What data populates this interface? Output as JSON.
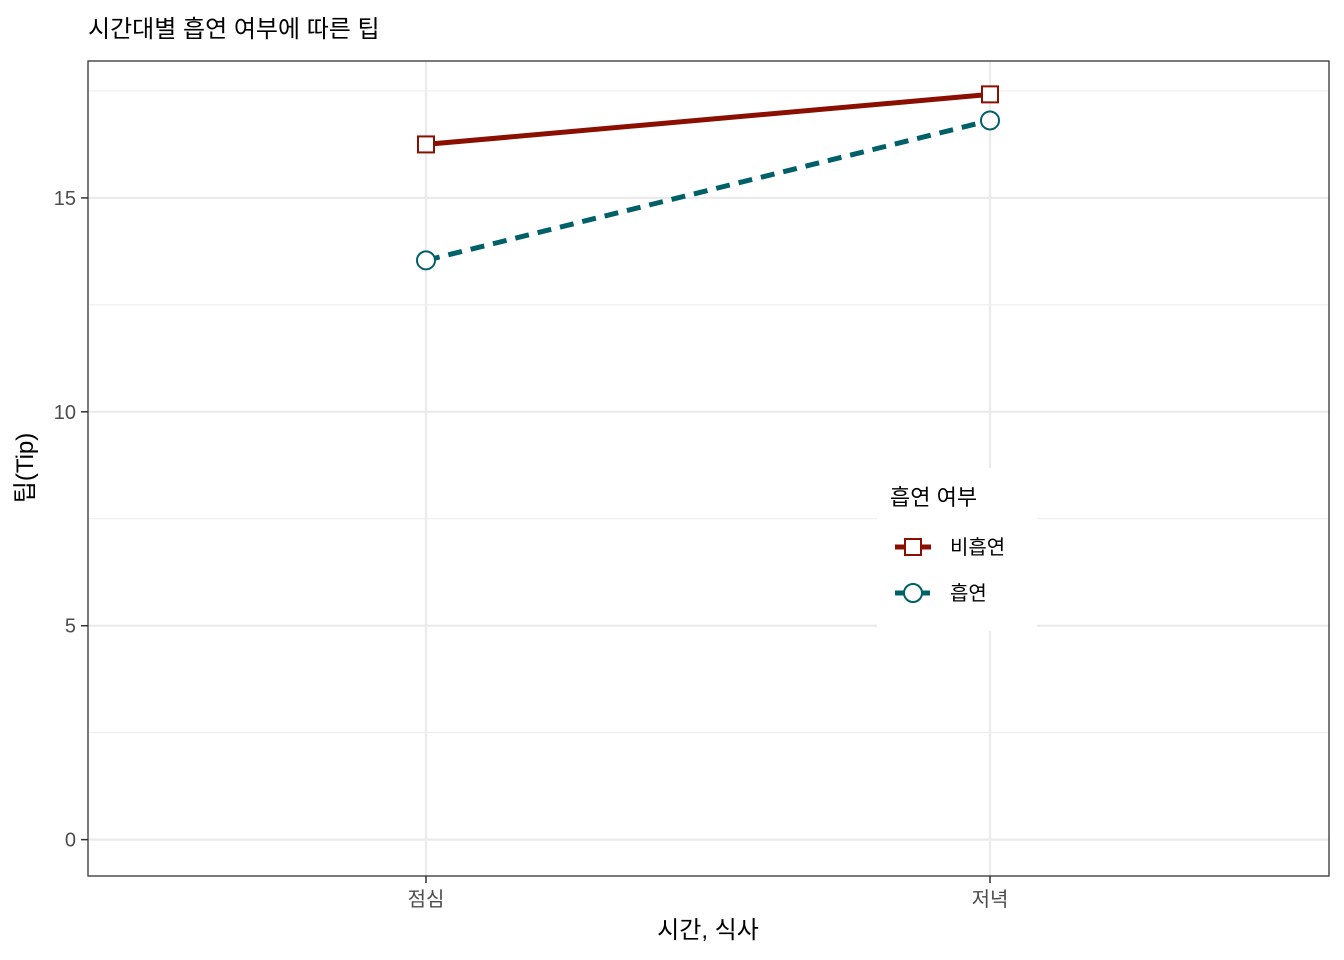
{
  "chart_data": {
    "type": "line",
    "title": "시간대별 흡연 여부에 따른 팁",
    "xlabel": "시간, 식사",
    "ylabel": "팁(Tip)",
    "categories": [
      "점심",
      "저녁"
    ],
    "ylim": [
      -0.85,
      18.2
    ],
    "y_ticks": [
      0,
      5,
      10,
      15
    ],
    "y_minor_ticks": [
      2.5,
      7.5,
      12.5,
      17.5
    ],
    "grid": true,
    "legend": {
      "title": "흡연 여부",
      "placement": "right"
    },
    "series": [
      {
        "name": "비흡연",
        "values": [
          16.25,
          17.42
        ],
        "color": "#8b0f00",
        "linestyle": "solid",
        "marker": "square"
      },
      {
        "name": "흡연",
        "values": [
          13.54,
          16.81
        ],
        "color": "#006068",
        "linestyle": "dashed",
        "marker": "circle"
      }
    ]
  }
}
